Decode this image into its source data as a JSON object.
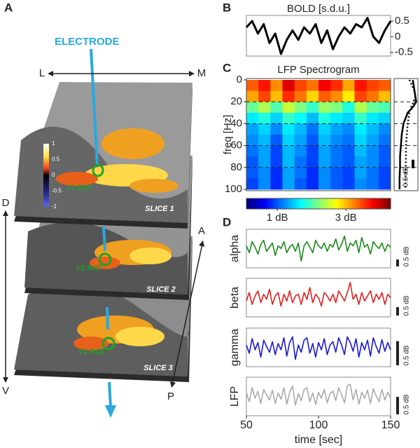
{
  "panel_a": {
    "label": "A",
    "electrode": "ELECTRODE",
    "axes": {
      "left": "L",
      "right": "M",
      "dorsal": "D",
      "ventral": "V",
      "anterior": "A",
      "posterior": "P"
    },
    "slices": [
      "SLICE 1",
      "SLICE 2",
      "SLICE 3"
    ],
    "roi_labels": [
      "V1 ROI",
      "V1 ROI",
      "V1 ROI"
    ],
    "colorbar_ticks": [
      1,
      0.5,
      0,
      -0.5,
      -1
    ]
  },
  "chart_data": [
    {
      "type": "line",
      "panel": "B",
      "title": "BOLD [s.d.u.]",
      "color": "#000000",
      "x": [
        50,
        54,
        58,
        62,
        66,
        70,
        74,
        78,
        82,
        86,
        90,
        94,
        98,
        102,
        106,
        110,
        114,
        118,
        122,
        126,
        130,
        134,
        138,
        142,
        146,
        150
      ],
      "values": [
        0.3,
        0.5,
        0.1,
        0.4,
        -0.2,
        0.1,
        -0.55,
        -0.1,
        0.2,
        -0.1,
        0.3,
        0.1,
        0.4,
        -0.2,
        0.2,
        -0.4,
        0.0,
        0.3,
        0.1,
        0.4,
        0.3,
        0.6,
        0.0,
        -0.2,
        0.2,
        0.5
      ],
      "xlim": [
        50,
        150
      ],
      "ylim": [
        -0.62,
        0.68
      ],
      "yticks": [
        0.5,
        0,
        -0.5
      ]
    },
    {
      "type": "heatmap",
      "panel": "C",
      "title": "LFP Spectrogram",
      "ylabel": "freq [Hz]",
      "xlim": [
        50,
        150
      ],
      "ylim": [
        0,
        100
      ],
      "yticks": [
        0,
        20,
        40,
        60,
        80,
        100
      ],
      "grid": true,
      "freq_bins": [
        0,
        10,
        20,
        30,
        40,
        50,
        60,
        70,
        80,
        90,
        100
      ],
      "z": [
        [
          3.4,
          3.7,
          3.2,
          3.9,
          3.5,
          3.3,
          3.8,
          3.6,
          3.1,
          3.7,
          3.5,
          3.4
        ],
        [
          3.1,
          3.5,
          3.0,
          3.6,
          3.3,
          2.9,
          3.4,
          3.2,
          2.8,
          3.5,
          3.3,
          3.0
        ],
        [
          2.1,
          2.4,
          2.0,
          2.5,
          2.2,
          1.9,
          2.3,
          2.2,
          1.8,
          2.4,
          2.1,
          2.0
        ],
        [
          1.6,
          1.8,
          1.5,
          1.9,
          1.7,
          1.4,
          1.8,
          1.6,
          1.5,
          1.9,
          1.6,
          1.5
        ],
        [
          1.3,
          1.5,
          1.2,
          1.6,
          1.4,
          1.1,
          1.5,
          1.3,
          1.2,
          1.6,
          1.4,
          1.2
        ],
        [
          1.2,
          1.4,
          1.0,
          1.5,
          1.3,
          1.0,
          1.4,
          1.2,
          1.1,
          1.5,
          1.3,
          1.1
        ],
        [
          1.1,
          1.3,
          0.9,
          1.4,
          1.2,
          0.9,
          1.3,
          1.1,
          1.0,
          1.4,
          1.2,
          1.0
        ],
        [
          1.0,
          1.3,
          0.9,
          1.4,
          1.1,
          0.9,
          1.3,
          1.1,
          1.0,
          1.3,
          1.2,
          1.0
        ],
        [
          1.0,
          1.2,
          0.8,
          1.3,
          1.1,
          0.8,
          1.2,
          1.0,
          0.9,
          1.3,
          1.1,
          0.9
        ],
        [
          0.9,
          1.2,
          0.8,
          1.3,
          1.0,
          0.8,
          1.2,
          1.0,
          0.9,
          1.2,
          1.1,
          0.9
        ]
      ],
      "clim": [
        0.1,
        4.3
      ],
      "colorbar_ticks": [
        {
          "value": 1,
          "label": "1 dB"
        },
        {
          "value": 3,
          "label": "3 dB"
        }
      ],
      "profile": {
        "freqs": [
          0,
          5,
          10,
          15,
          20,
          25,
          30,
          40,
          50,
          60,
          70,
          80,
          90,
          100
        ],
        "xlim": [
          -0.2,
          1.2
        ],
        "scale_bar": {
          "value": 0.5,
          "label": "0.5 dB"
        },
        "series": [
          {
            "style": "solid",
            "values": [
              0.9,
              0.95,
              1.0,
              1.05,
              1.1,
              0.9,
              0.6,
              0.35,
              0.25,
              0.2,
              0.15,
              0.15,
              0.12,
              0.12
            ]
          },
          {
            "style": "dotted",
            "values": [
              0.7,
              0.85,
              1.0,
              1.05,
              0.95,
              0.8,
              0.7,
              0.6,
              0.55,
              0.5,
              0.5,
              0.48,
              0.47,
              0.46
            ]
          }
        ]
      }
    },
    {
      "type": "stacked-panels",
      "panel": "D",
      "xlabel": "time [sec]",
      "xlim": [
        50,
        150
      ],
      "xticks": [
        50,
        100,
        150
      ],
      "x": [
        50,
        52,
        54,
        56,
        58,
        60,
        62,
        64,
        66,
        68,
        70,
        72,
        74,
        76,
        78,
        80,
        82,
        84,
        86,
        88,
        90,
        92,
        94,
        96,
        98,
        100,
        102,
        104,
        106,
        108,
        110,
        112,
        114,
        116,
        118,
        120,
        122,
        124,
        126,
        128,
        130,
        132,
        134,
        136,
        138,
        140,
        142,
        144,
        146,
        148,
        150
      ],
      "series": [
        {
          "name": "alpha",
          "color": "#1a8a1a",
          "ylim": [
            -1.4,
            1.4
          ],
          "scale_bar": {
            "value": 0.5,
            "label": "0.5 dB"
          },
          "values": [
            0.2,
            -0.3,
            0.5,
            0.1,
            -0.4,
            0.3,
            0.6,
            -0.2,
            0.1,
            0.4,
            -0.5,
            0.2,
            0.0,
            0.5,
            -0.3,
            0.1,
            0.3,
            -0.2,
            0.4,
            -0.9,
            0.2,
            0.5,
            0.1,
            -0.3,
            0.6,
            0.2,
            0.0,
            0.4,
            -0.2,
            0.3,
            0.1,
            0.7,
            -0.1,
            0.3,
            0.9,
            -0.2,
            0.4,
            0.2,
            0.6,
            -0.3,
            0.8,
            0.1,
            0.3,
            -0.4,
            0.5,
            0.2,
            0.0,
            0.4,
            -0.2,
            0.3,
            0.1
          ]
        },
        {
          "name": "beta",
          "color": "#e02020",
          "ylim": [
            -1.15,
            1.15
          ],
          "scale_bar": {
            "value": 0.5,
            "label": "0.5 dB"
          },
          "values": [
            -0.2,
            0.3,
            -0.4,
            0.1,
            0.4,
            -0.3,
            0.2,
            -0.1,
            0.5,
            -0.4,
            0.1,
            0.3,
            -0.5,
            0.2,
            -0.2,
            0.4,
            -0.3,
            0.1,
            0.2,
            -0.4,
            0.3,
            -0.1,
            0.6,
            -0.3,
            0.2,
            0.0,
            -0.5,
            0.3,
            0.1,
            -0.2,
            0.2,
            -0.3,
            0.4,
            0.1,
            -0.2,
            0.3,
            0.9,
            -0.1,
            0.2,
            -0.4,
            0.3,
            -0.2,
            0.1,
            0.4,
            -0.3,
            0.2,
            -0.1,
            0.3,
            -0.4,
            0.2,
            0.0
          ]
        },
        {
          "name": "gamma",
          "color": "#1a1ad0",
          "ylim": [
            -0.4,
            0.4
          ],
          "scale_bar": {
            "value": 0.5,
            "label": "0.5 dB"
          },
          "values": [
            0.05,
            -0.12,
            0.18,
            -0.05,
            0.1,
            -0.2,
            0.15,
            0.02,
            -0.1,
            0.12,
            -0.15,
            0.08,
            -0.05,
            0.2,
            -0.18,
            0.1,
            0.22,
            -0.25,
            0.05,
            -0.1,
            0.15,
            0.2,
            -0.12,
            0.08,
            -0.2,
            0.1,
            -0.05,
            0.18,
            -0.15,
            0.05,
            0.12,
            -0.1,
            0.2,
            0.05,
            -0.15,
            0.22,
            0.1,
            -0.08,
            0.18,
            -0.2,
            0.1,
            -0.05,
            0.15,
            -0.18,
            0.2,
            0.02,
            -0.12,
            0.16,
            -0.08,
            0.1,
            -0.05
          ]
        },
        {
          "name": "LFP",
          "color": "#aaaaaa",
          "ylim": [
            -0.55,
            0.55
          ],
          "scale_bar": {
            "value": 0.5,
            "label": "0.5 dB"
          },
          "values": [
            0.1,
            -0.15,
            0.25,
            -0.05,
            0.15,
            -0.2,
            0.2,
            0.05,
            -0.1,
            0.18,
            -0.2,
            0.1,
            -0.08,
            0.25,
            -0.22,
            0.12,
            0.3,
            -0.25,
            0.08,
            -0.12,
            0.2,
            0.25,
            -0.15,
            0.1,
            -0.22,
            0.12,
            -0.05,
            0.2,
            -0.18,
            0.08,
            0.15,
            -0.12,
            0.25,
            0.05,
            -0.18,
            0.3,
            0.35,
            -0.1,
            0.2,
            -0.22,
            0.12,
            -0.05,
            0.18,
            -0.2,
            0.22,
            0.02,
            -0.15,
            0.2,
            -0.1,
            0.12,
            -0.05
          ]
        }
      ]
    }
  ]
}
